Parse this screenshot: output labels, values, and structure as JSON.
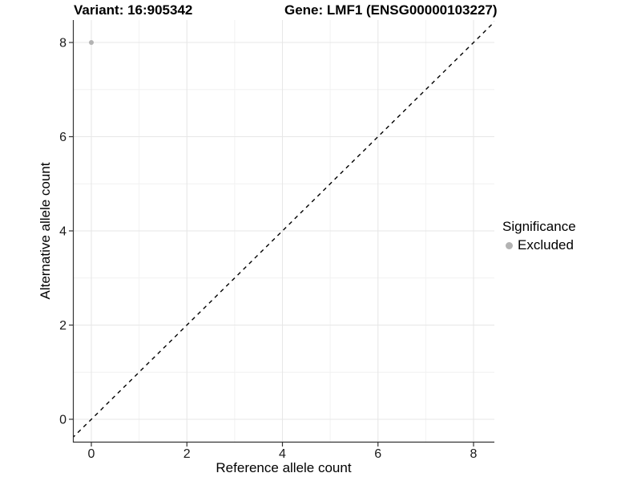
{
  "chart_data": {
    "type": "scatter",
    "title_left": "Variant: 16:905342",
    "title_right": "Gene: LMF1 (ENSG00000103227)",
    "xlabel": "Reference allele count",
    "ylabel": "Alternative allele count",
    "x_ticks": [
      0,
      2,
      4,
      6,
      8
    ],
    "y_ticks": [
      0,
      2,
      4,
      6,
      8
    ],
    "x_minor_ticks": [
      1,
      3,
      5,
      7
    ],
    "y_minor_ticks": [
      1,
      3,
      5,
      7
    ],
    "xlim": [
      -0.39,
      8.44
    ],
    "ylim": [
      -0.48,
      8.48
    ],
    "grid": "on",
    "panel_background": "#ffffff",
    "axis_color": "#333333",
    "grid_major_color": "#e7e7e7",
    "grid_minor_color": "#f1f1f1",
    "identity_line": {
      "style": "dashed",
      "color": "#000000"
    },
    "legend": {
      "title": "Significance",
      "position": "right",
      "items": [
        {
          "label": "Excluded",
          "color": "#b3b3b3"
        }
      ]
    },
    "series": [
      {
        "name": "Excluded",
        "color": "#b3b3b3",
        "points": [
          {
            "x": 0,
            "y": 8
          }
        ]
      }
    ]
  }
}
